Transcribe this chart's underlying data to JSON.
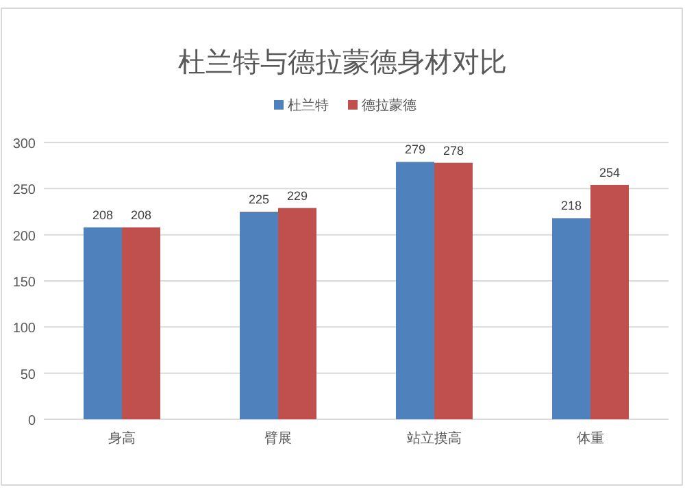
{
  "chart_data": {
    "type": "bar",
    "title": "杜兰特与德拉蒙德身材对比",
    "categories": [
      "身高",
      "臂展",
      "站立摸高",
      "体重"
    ],
    "series": [
      {
        "name": "杜兰特",
        "color": "#4f81bd",
        "values": [
          208,
          225,
          279,
          218
        ]
      },
      {
        "name": "德拉蒙德",
        "color": "#c0504d",
        "values": [
          208,
          229,
          278,
          254
        ]
      }
    ],
    "ylim": [
      0,
      300
    ],
    "yticks": [
      0,
      50,
      100,
      150,
      200,
      250,
      300
    ],
    "grid": "y",
    "legend": "top",
    "data_labels": true
  }
}
